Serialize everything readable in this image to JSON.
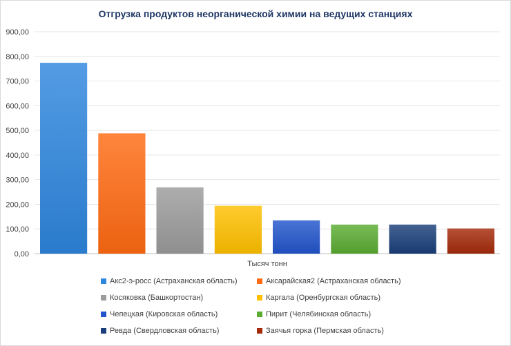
{
  "chart_data": {
    "type": "bar",
    "title": "Отгрузка продуктов неорганической химии на ведущих станциях",
    "xlabel": "Тысяч тонн",
    "ylabel": "",
    "ylim": [
      0,
      900
    ],
    "yticks": [
      "0,00",
      "100,00",
      "200,00",
      "300,00",
      "400,00",
      "500,00",
      "600,00",
      "700,00",
      "800,00",
      "900,00"
    ],
    "grid": true,
    "legend_position": "bottom",
    "series": [
      {
        "name": "Акс2-э-росс (Астраханская область)",
        "value": 774,
        "color": "#2e86de"
      },
      {
        "name": "Аксарайская2 (Астраханская область)",
        "value": 488,
        "color": "#ff6a13"
      },
      {
        "name": "Косяковка (Башкортостан)",
        "value": 269,
        "color": "#9b9b9b"
      },
      {
        "name": "Каргала (Оренбургская область)",
        "value": 194,
        "color": "#ffc000"
      },
      {
        "name": "Чепецкая  (Кировская область)",
        "value": 135,
        "color": "#2255cc"
      },
      {
        "name": "Пирит (Челябинская область)",
        "value": 118,
        "color": "#5aac32"
      },
      {
        "name": "Ревда  (Свердловская область)",
        "value": 118,
        "color": "#1a3f7a"
      },
      {
        "name": "Заячья горка (Пермская область)",
        "value": 102,
        "color": "#a52a0a"
      }
    ]
  }
}
